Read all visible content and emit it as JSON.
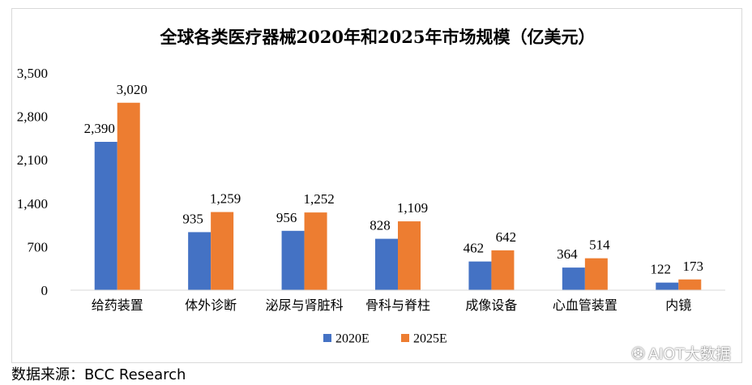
{
  "chart_data": {
    "type": "bar",
    "title": "全球各类医疗器械2020年和2025年市场规模（亿美元）",
    "categories": [
      "给药装置",
      "体外诊断",
      "泌尿与肾脏科",
      "骨科与脊柱",
      "成像设备",
      "心血管装置",
      "内镜"
    ],
    "series": [
      {
        "name": "2020E",
        "values": [
          2390,
          935,
          956,
          828,
          462,
          364,
          122
        ],
        "labels": [
          "2,390",
          "935",
          "956",
          "828",
          "462",
          "364",
          "122"
        ],
        "color": "#4472C4"
      },
      {
        "name": "2025E",
        "values": [
          3020,
          1259,
          1252,
          1109,
          642,
          514,
          173
        ],
        "labels": [
          "3,020",
          "1,259",
          "1,252",
          "1,109",
          "642",
          "514",
          "173"
        ],
        "color": "#ED7D31"
      }
    ],
    "yticks": [
      "0",
      "700",
      "1,400",
      "2,100",
      "2,800",
      "3,500"
    ],
    "ytick_values": [
      0,
      700,
      1400,
      2100,
      2800,
      3500
    ],
    "ylim": [
      0,
      3500
    ],
    "grid": false,
    "legend": "bottom-center"
  },
  "source_text": "数据来源：BCC Research",
  "watermark": {
    "icon": "wechat-icon",
    "text": "AIOT大数据"
  }
}
